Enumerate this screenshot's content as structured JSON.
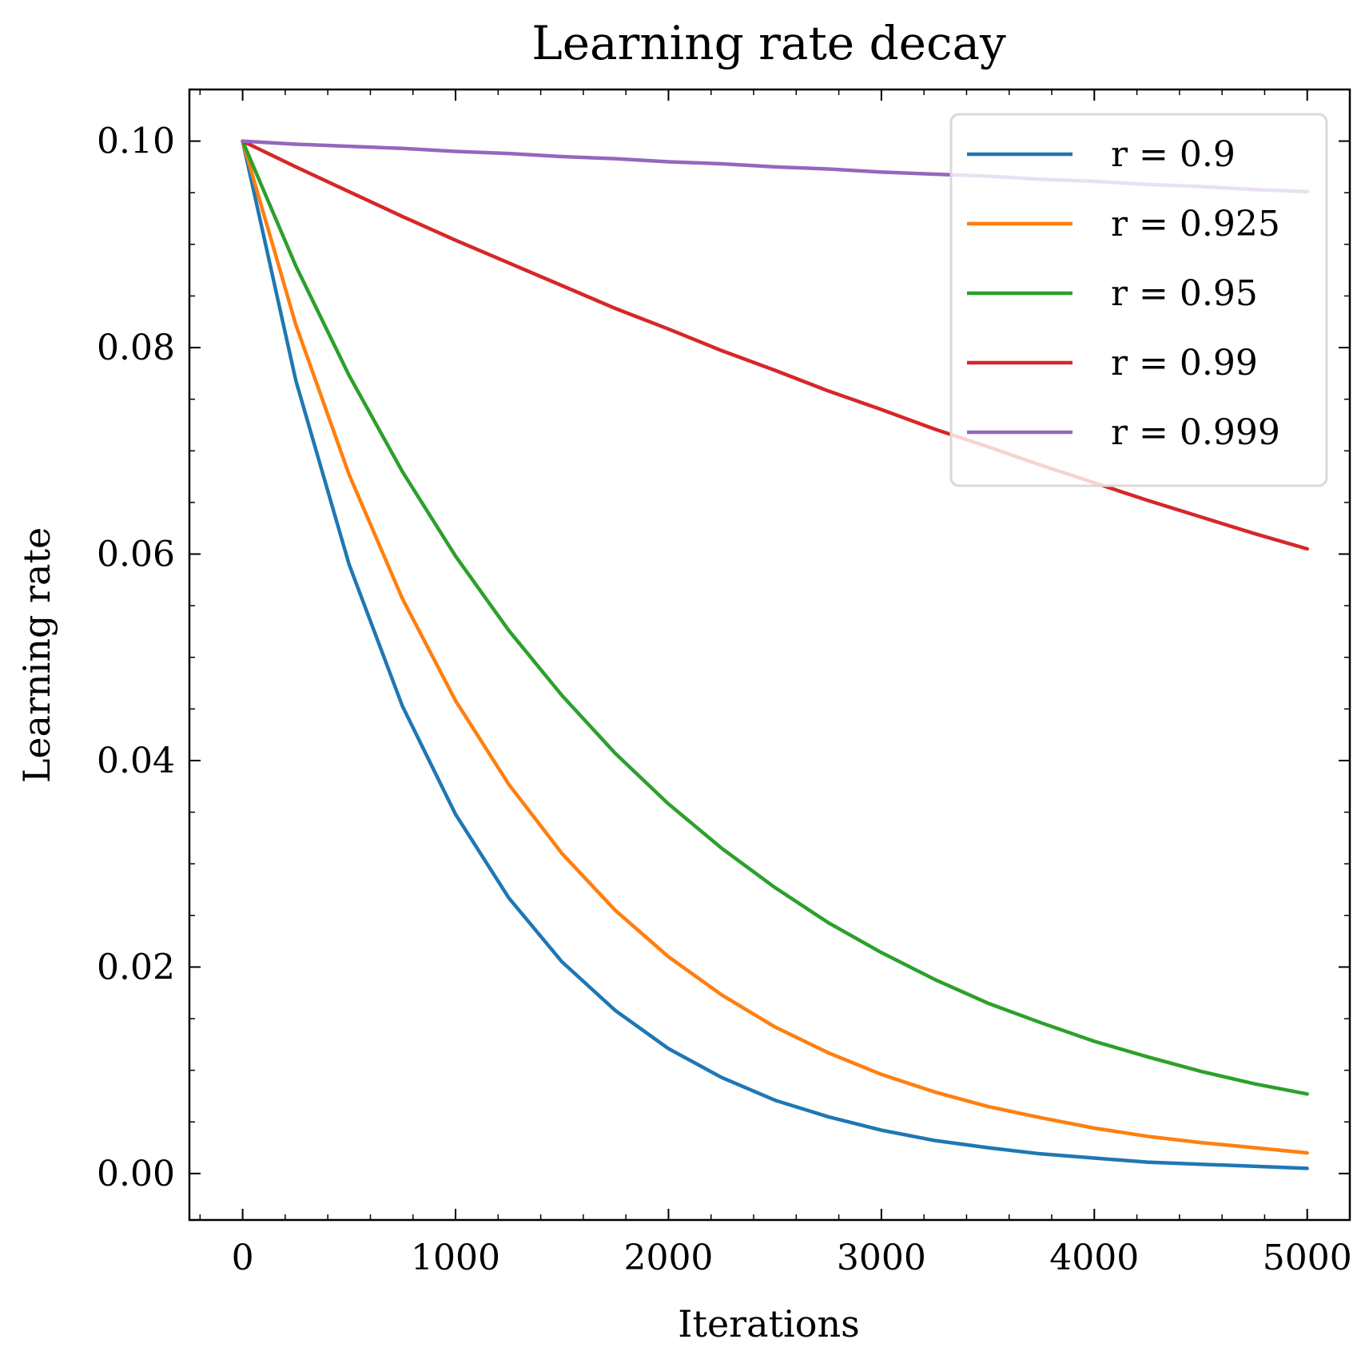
{
  "chart_data": {
    "type": "line",
    "title": "Learning rate decay",
    "xlabel": "Iterations",
    "ylabel": "Learning rate",
    "xlim": [
      -250,
      5200
    ],
    "ylim": [
      -0.0045,
      0.105
    ],
    "xticks": [
      0,
      1000,
      2000,
      3000,
      4000,
      5000
    ],
    "xtick_labels": [
      "0",
      "1000",
      "2000",
      "3000",
      "4000",
      "5000"
    ],
    "yticks": [
      0.0,
      0.02,
      0.04,
      0.06,
      0.08,
      0.1
    ],
    "ytick_labels": [
      "0.00",
      "0.02",
      "0.04",
      "0.06",
      "0.08",
      "0.10"
    ],
    "grid": false,
    "legend_position": "top-right",
    "x": [
      0,
      250,
      500,
      750,
      1000,
      1250,
      1500,
      1750,
      2000,
      2250,
      2500,
      2750,
      3000,
      3250,
      3500,
      3750,
      4000,
      4250,
      4500,
      4750,
      5000
    ],
    "series": [
      {
        "name": "r = 0.9",
        "color": "#1f77b4",
        "values": [
          0.1,
          0.0768,
          0.059,
          0.0453,
          0.0348,
          0.0267,
          0.0205,
          0.0158,
          0.0121,
          0.0093,
          0.0071,
          0.0055,
          0.0042,
          0.0032,
          0.0025,
          0.0019,
          0.0015,
          0.0011,
          0.0009,
          0.0007,
          0.0005
        ]
      },
      {
        "name": "r = 0.925",
        "color": "#ff7f0e",
        "values": [
          0.1,
          0.0822,
          0.0677,
          0.0557,
          0.0458,
          0.0377,
          0.031,
          0.0255,
          0.021,
          0.0173,
          0.0142,
          0.0117,
          0.0096,
          0.0079,
          0.0065,
          0.0054,
          0.0044,
          0.0036,
          0.003,
          0.0025,
          0.002
        ]
      },
      {
        "name": "r = 0.95",
        "color": "#2ca02c",
        "values": [
          0.1,
          0.0879,
          0.0773,
          0.068,
          0.0598,
          0.0526,
          0.0463,
          0.0407,
          0.0358,
          0.0315,
          0.0277,
          0.0243,
          0.0214,
          0.0188,
          0.0165,
          0.0146,
          0.0128,
          0.0113,
          0.0099,
          0.0087,
          0.0077
        ]
      },
      {
        "name": "r = 0.99",
        "color": "#d62728",
        "values": [
          0.1,
          0.0975,
          0.0951,
          0.0927,
          0.0904,
          0.0882,
          0.086,
          0.0838,
          0.0818,
          0.0797,
          0.0778,
          0.0758,
          0.074,
          0.0721,
          0.0704,
          0.0686,
          0.0669,
          0.0652,
          0.0636,
          0.062,
          0.0605
        ]
      },
      {
        "name": "r = 0.999",
        "color": "#9467bd",
        "values": [
          0.1,
          0.0997,
          0.0995,
          0.0993,
          0.099,
          0.0988,
          0.0985,
          0.0983,
          0.098,
          0.0978,
          0.0975,
          0.0973,
          0.097,
          0.0968,
          0.0966,
          0.0963,
          0.0961,
          0.0958,
          0.0956,
          0.0953,
          0.0951
        ]
      }
    ]
  }
}
